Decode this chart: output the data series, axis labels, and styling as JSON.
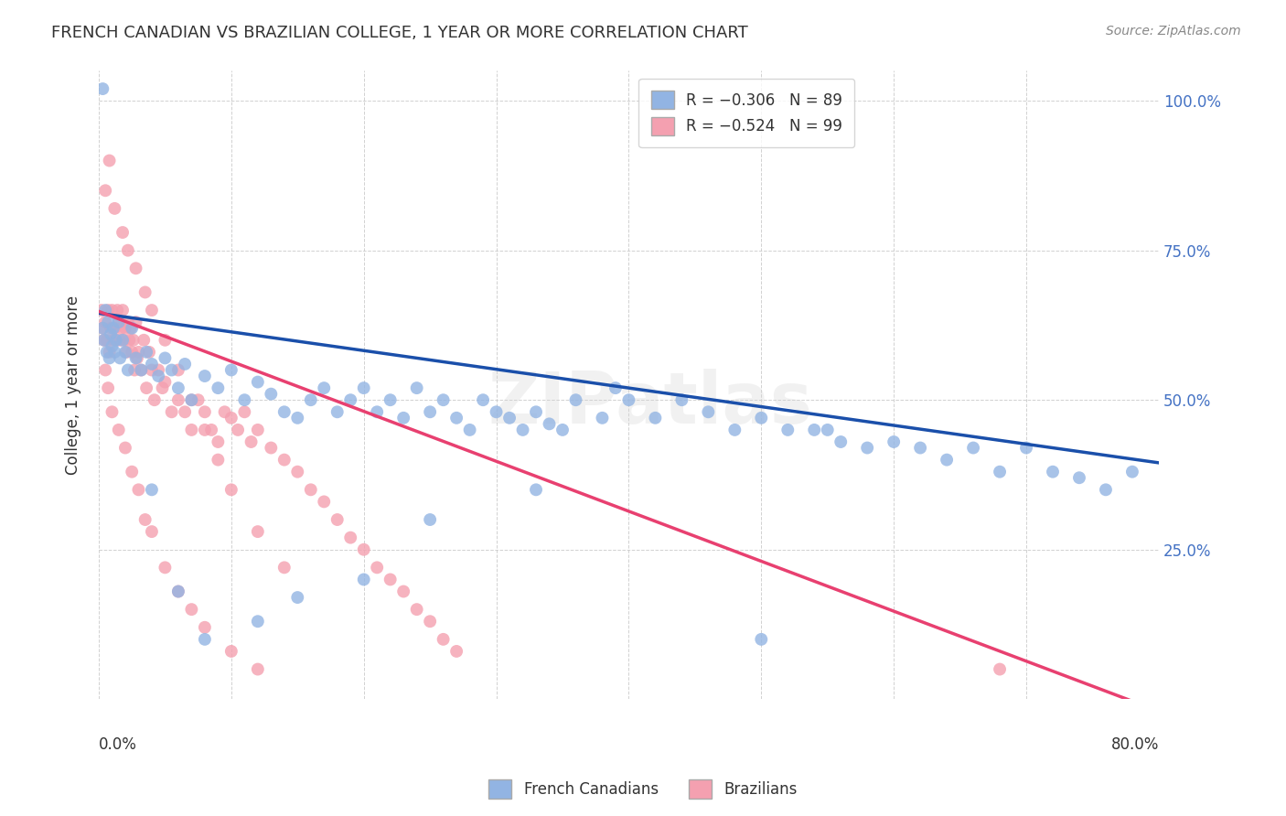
{
  "title": "FRENCH CANADIAN VS BRAZILIAN COLLEGE, 1 YEAR OR MORE CORRELATION CHART",
  "source": "Source: ZipAtlas.com",
  "ylabel": "College, 1 year or more",
  "watermark": "ZIPatlas",
  "legend_blue_label": "R = -0.306   N = 89",
  "legend_pink_label": "R = -0.524   N = 99",
  "blue_color": "#92b4e3",
  "pink_color": "#f4a0b0",
  "blue_line_color": "#1a4faa",
  "pink_line_color": "#e84070",
  "background_color": "#ffffff",
  "grid_color": "#cccccc",
  "xmin": 0.0,
  "xmax": 0.8,
  "ymin": 0.0,
  "ymax": 1.05,
  "ylabel_right_ticks": [
    "100.0%",
    "75.0%",
    "50.0%",
    "25.0%"
  ],
  "ylabel_right_vals": [
    1.0,
    0.75,
    0.5,
    0.25
  ],
  "blue_x": [
    0.003,
    0.004,
    0.005,
    0.006,
    0.007,
    0.008,
    0.009,
    0.01,
    0.011,
    0.012,
    0.013,
    0.015,
    0.016,
    0.018,
    0.02,
    0.022,
    0.025,
    0.028,
    0.032,
    0.036,
    0.04,
    0.045,
    0.05,
    0.055,
    0.06,
    0.065,
    0.07,
    0.08,
    0.09,
    0.1,
    0.11,
    0.12,
    0.13,
    0.14,
    0.15,
    0.16,
    0.17,
    0.18,
    0.19,
    0.2,
    0.21,
    0.22,
    0.23,
    0.24,
    0.25,
    0.26,
    0.27,
    0.28,
    0.29,
    0.3,
    0.31,
    0.32,
    0.33,
    0.34,
    0.35,
    0.36,
    0.38,
    0.39,
    0.4,
    0.42,
    0.44,
    0.46,
    0.48,
    0.5,
    0.52,
    0.54,
    0.56,
    0.58,
    0.6,
    0.62,
    0.64,
    0.66,
    0.68,
    0.7,
    0.72,
    0.74,
    0.76,
    0.78,
    0.003,
    0.55,
    0.33,
    0.25,
    0.2,
    0.15,
    0.12,
    0.08,
    0.06,
    0.04,
    0.5
  ],
  "blue_y": [
    0.62,
    0.6,
    0.65,
    0.58,
    0.63,
    0.57,
    0.61,
    0.59,
    0.62,
    0.58,
    0.6,
    0.63,
    0.57,
    0.6,
    0.58,
    0.55,
    0.62,
    0.57,
    0.55,
    0.58,
    0.56,
    0.54,
    0.57,
    0.55,
    0.52,
    0.56,
    0.5,
    0.54,
    0.52,
    0.55,
    0.5,
    0.53,
    0.51,
    0.48,
    0.47,
    0.5,
    0.52,
    0.48,
    0.5,
    0.52,
    0.48,
    0.5,
    0.47,
    0.52,
    0.48,
    0.5,
    0.47,
    0.45,
    0.5,
    0.48,
    0.47,
    0.45,
    0.48,
    0.46,
    0.45,
    0.5,
    0.47,
    0.52,
    0.5,
    0.47,
    0.5,
    0.48,
    0.45,
    0.47,
    0.45,
    0.45,
    0.43,
    0.42,
    0.43,
    0.42,
    0.4,
    0.42,
    0.38,
    0.42,
    0.38,
    0.37,
    0.35,
    0.38,
    1.02,
    0.45,
    0.35,
    0.3,
    0.2,
    0.17,
    0.13,
    0.1,
    0.18,
    0.35,
    0.1
  ],
  "pink_x": [
    0.002,
    0.003,
    0.004,
    0.005,
    0.006,
    0.007,
    0.008,
    0.009,
    0.01,
    0.011,
    0.012,
    0.013,
    0.014,
    0.015,
    0.016,
    0.017,
    0.018,
    0.019,
    0.02,
    0.021,
    0.022,
    0.023,
    0.024,
    0.025,
    0.026,
    0.027,
    0.028,
    0.029,
    0.03,
    0.032,
    0.034,
    0.036,
    0.038,
    0.04,
    0.042,
    0.045,
    0.048,
    0.05,
    0.055,
    0.06,
    0.065,
    0.07,
    0.075,
    0.08,
    0.085,
    0.09,
    0.095,
    0.1,
    0.105,
    0.11,
    0.115,
    0.12,
    0.13,
    0.14,
    0.15,
    0.16,
    0.17,
    0.18,
    0.19,
    0.2,
    0.21,
    0.22,
    0.23,
    0.24,
    0.25,
    0.26,
    0.27,
    0.005,
    0.008,
    0.012,
    0.018,
    0.022,
    0.028,
    0.035,
    0.04,
    0.05,
    0.06,
    0.07,
    0.08,
    0.09,
    0.1,
    0.12,
    0.14,
    0.005,
    0.007,
    0.01,
    0.015,
    0.02,
    0.025,
    0.03,
    0.035,
    0.04,
    0.05,
    0.06,
    0.07,
    0.08,
    0.1,
    0.12,
    0.68
  ],
  "pink_y": [
    0.65,
    0.62,
    0.6,
    0.63,
    0.6,
    0.65,
    0.58,
    0.62,
    0.65,
    0.6,
    0.62,
    0.6,
    0.65,
    0.63,
    0.6,
    0.62,
    0.65,
    0.6,
    0.62,
    0.58,
    0.63,
    0.6,
    0.62,
    0.58,
    0.6,
    0.55,
    0.63,
    0.57,
    0.58,
    0.55,
    0.6,
    0.52,
    0.58,
    0.55,
    0.5,
    0.55,
    0.52,
    0.53,
    0.48,
    0.5,
    0.48,
    0.45,
    0.5,
    0.48,
    0.45,
    0.43,
    0.48,
    0.47,
    0.45,
    0.48,
    0.43,
    0.45,
    0.42,
    0.4,
    0.38,
    0.35,
    0.33,
    0.3,
    0.27,
    0.25,
    0.22,
    0.2,
    0.18,
    0.15,
    0.13,
    0.1,
    0.08,
    0.85,
    0.9,
    0.82,
    0.78,
    0.75,
    0.72,
    0.68,
    0.65,
    0.6,
    0.55,
    0.5,
    0.45,
    0.4,
    0.35,
    0.28,
    0.22,
    0.55,
    0.52,
    0.48,
    0.45,
    0.42,
    0.38,
    0.35,
    0.3,
    0.28,
    0.22,
    0.18,
    0.15,
    0.12,
    0.08,
    0.05,
    0.05
  ]
}
